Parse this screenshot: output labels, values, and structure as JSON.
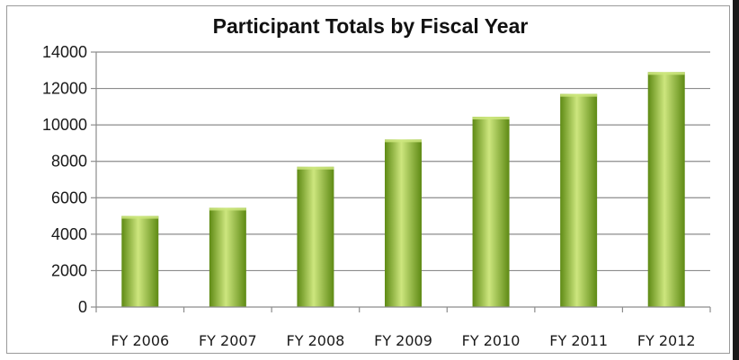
{
  "chart_data": {
    "type": "bar",
    "title": "Participant Totals by Fiscal Year",
    "xlabel": "",
    "ylabel": "",
    "categories": [
      "FY 2006",
      "FY 2007",
      "FY 2008",
      "FY 2009",
      "FY 2010",
      "FY 2011",
      "FY 2012"
    ],
    "values": [
      5000,
      5450,
      7700,
      9200,
      10450,
      11700,
      12900
    ],
    "ylim": [
      0,
      14000
    ],
    "yticks": [
      "0",
      "2000",
      "4000",
      "6000",
      "8000",
      "10000",
      "12000",
      "14000"
    ],
    "grid": true,
    "legend": "none",
    "colors": {
      "bar_light": "#cde67e",
      "bar_mid": "#8fbe2e",
      "bar_dark": "#5e8a14",
      "gridline": "#8c8c8c",
      "axis": "#8c8c8c"
    }
  }
}
